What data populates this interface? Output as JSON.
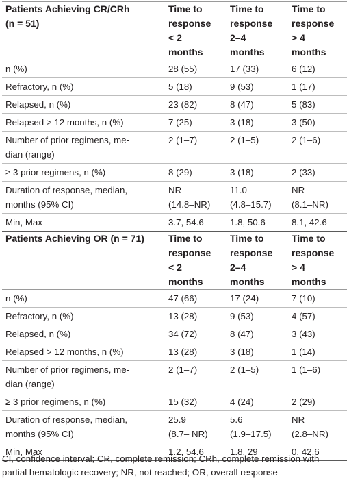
{
  "groups": [
    {
      "title": "Patients Achieving CR/CRh (n = 51)",
      "title_lines": [
        "Patients Achieving CR/CRh",
        "(n = 51)"
      ],
      "columns": [
        {
          "lines": [
            "Time to",
            "response",
            "< 2",
            "months"
          ]
        },
        {
          "lines": [
            "Time to",
            "response",
            "2–4",
            "months"
          ]
        },
        {
          "lines": [
            "Time to",
            "response",
            "> 4",
            "months"
          ]
        }
      ],
      "rows": [
        {
          "label": [
            "n (%)"
          ],
          "values": [
            [
              "28 (55)"
            ],
            [
              "17 (33)"
            ],
            [
              "6 (12)"
            ]
          ]
        },
        {
          "label": [
            "Refractory, n (%)"
          ],
          "values": [
            [
              "5 (18)"
            ],
            [
              "9 (53)"
            ],
            [
              "1 (17)"
            ]
          ]
        },
        {
          "label": [
            "Relapsed, n (%)"
          ],
          "values": [
            [
              "23 (82)"
            ],
            [
              "8 (47)"
            ],
            [
              "5 (83)"
            ]
          ]
        },
        {
          "label": [
            "Relapsed > 12 months, n (%)"
          ],
          "values": [
            [
              "7 (25)"
            ],
            [
              "3 (18)"
            ],
            [
              "3 (50)"
            ]
          ]
        },
        {
          "label": [
            "Number of prior regimens, me-",
            "dian (range)"
          ],
          "values": [
            [
              "2 (1–7)"
            ],
            [
              "2 (1–5)"
            ],
            [
              "2 (1–6)"
            ]
          ]
        },
        {
          "label": [
            "≥ 3 prior regimens, n (%)"
          ],
          "values": [
            [
              "8 (29)"
            ],
            [
              "3 (18)"
            ],
            [
              "2 (33)"
            ]
          ]
        },
        {
          "label": [
            "Duration of response, median,",
            "months (95% CI)"
          ],
          "values": [
            [
              "NR",
              "(14.8–NR)"
            ],
            [
              "11.0",
              "(4.8–15.7)"
            ],
            [
              "NR",
              "(8.1–NR)"
            ]
          ]
        },
        {
          "label": [
            "Min, Max"
          ],
          "values": [
            [
              "3.7, 54.6"
            ],
            [
              "1.8, 50.6"
            ],
            [
              "8.1, 42.6"
            ]
          ]
        }
      ]
    },
    {
      "title": "Patients Achieving OR (n = 71)",
      "title_lines": [
        "Patients Achieving OR (n = 71)"
      ],
      "columns": [
        {
          "lines": [
            "Time to",
            "response",
            "< 2",
            "months"
          ]
        },
        {
          "lines": [
            "Time to",
            "response",
            "2–4",
            "months"
          ]
        },
        {
          "lines": [
            "Time to",
            "response",
            "> 4",
            "months"
          ]
        }
      ],
      "rows": [
        {
          "label": [
            "n (%)"
          ],
          "values": [
            [
              "47 (66)"
            ],
            [
              "17 (24)"
            ],
            [
              "7 (10)"
            ]
          ]
        },
        {
          "label": [
            "Refractory, n (%)"
          ],
          "values": [
            [
              "13 (28)"
            ],
            [
              "9 (53)"
            ],
            [
              "4 (57)"
            ]
          ]
        },
        {
          "label": [
            "Relapsed, n (%)"
          ],
          "values": [
            [
              "34 (72)"
            ],
            [
              "8 (47)"
            ],
            [
              "3 (43)"
            ]
          ]
        },
        {
          "label": [
            "Relapsed > 12 months, n (%)"
          ],
          "values": [
            [
              "13 (28)"
            ],
            [
              "3 (18)"
            ],
            [
              "1 (14)"
            ]
          ]
        },
        {
          "label": [
            "Number of prior regimens, me-",
            "dian (range)"
          ],
          "values": [
            [
              "2 (1–7)"
            ],
            [
              "2 (1–5)"
            ],
            [
              "1 (1–6)"
            ]
          ]
        },
        {
          "label": [
            "≥ 3 prior regimens, n (%)"
          ],
          "values": [
            [
              "15 (32)"
            ],
            [
              "4 (24)"
            ],
            [
              "2 (29)"
            ]
          ]
        },
        {
          "label": [
            "Duration of response, median,",
            "months (95% CI)"
          ],
          "values": [
            [
              "25.9",
              "(8.7– NR)"
            ],
            [
              "5.6",
              "(1.9–17.5)"
            ],
            [
              "NR",
              "(2.8–NR)"
            ]
          ]
        },
        {
          "label": [
            "Min, Max"
          ],
          "values": [
            [
              "1.2, 54.6"
            ],
            [
              "1.8, 29"
            ],
            [
              "0, 42.6"
            ]
          ]
        }
      ]
    }
  ],
  "footnote_lines": [
    "CI, confidence interval; CR, complete remission; CRh, complete remission with",
    "partial hematologic recovery; NR, not reached; OR, overall response"
  ]
}
